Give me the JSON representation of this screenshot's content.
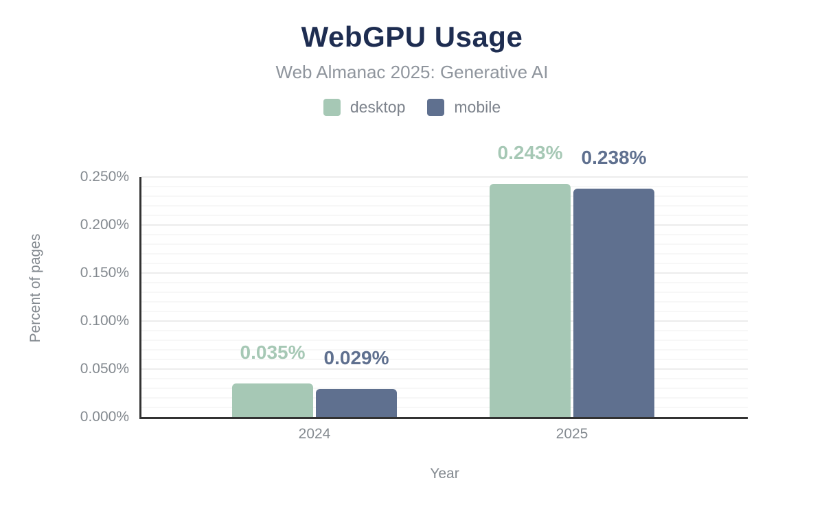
{
  "header": {
    "title": "WebGPU Usage",
    "subtitle": "Web Almanac 2025: Generative AI"
  },
  "chart_data": {
    "type": "bar",
    "title": "WebGPU Usage",
    "subtitle": "Web Almanac 2025: Generative AI",
    "categories": [
      "2024",
      "2025"
    ],
    "series": [
      {
        "name": "desktop",
        "color": "#a6c8b5",
        "values": [
          0.035,
          0.243
        ],
        "labels": [
          "0.035%",
          "0.243%"
        ]
      },
      {
        "name": "mobile",
        "color": "#5f708f",
        "values": [
          0.029,
          0.238
        ],
        "labels": [
          "0.029%",
          "0.238%"
        ]
      }
    ],
    "xlabel": "Year",
    "ylabel": "Percent of pages",
    "ylim": [
      0,
      0.25
    ],
    "ytick_values": [
      0,
      0.05,
      0.1,
      0.15,
      0.2,
      0.25
    ],
    "ytick_labels": [
      "0.000%",
      "0.050%",
      "0.100%",
      "0.150%",
      "0.200%",
      "0.250%"
    ],
    "grid": "horizontal; minor every 0.010%, major every 0.050%",
    "legend_position": "top"
  },
  "colors": {
    "title_navy": "#1e2d51",
    "subtitle_gray": "#8f959d",
    "axis_text_gray": "#83898f",
    "desktop": "#a6c8b5",
    "mobile": "#5f708f",
    "axis_line": "#323232",
    "background": "#ffffff"
  }
}
